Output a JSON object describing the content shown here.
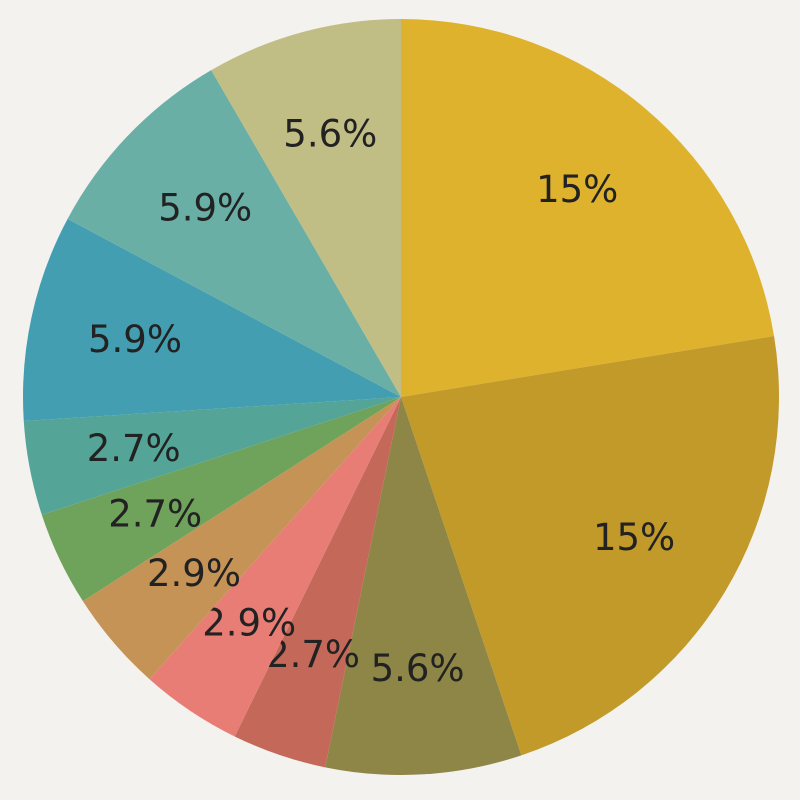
{
  "chart_data": {
    "type": "pie",
    "title": "",
    "start_angle": "12 o'clock",
    "direction": "clockwise",
    "legend": "none",
    "slices": [
      {
        "label": "15%",
        "value": 15.0,
        "color": "#dfb22e"
      },
      {
        "label": "15%",
        "value": 15.0,
        "color": "#c29a29"
      },
      {
        "label": "5.6%",
        "value": 5.6,
        "color": "#8e8646"
      },
      {
        "label": "2.7%",
        "value": 2.7,
        "color": "#c4695a"
      },
      {
        "label": "2.9%",
        "value": 2.9,
        "color": "#e87d75"
      },
      {
        "label": "2.9%",
        "value": 2.9,
        "color": "#c69357"
      },
      {
        "label": "2.7%",
        "value": 2.7,
        "color": "#6fa35c"
      },
      {
        "label": "2.7%",
        "value": 2.7,
        "color": "#54a597"
      },
      {
        "label": "5.9%",
        "value": 5.9,
        "color": "#429eb0"
      },
      {
        "label": "5.9%",
        "value": 5.9,
        "color": "#6aafa6"
      },
      {
        "label": "5.6%",
        "value": 5.6,
        "color": "#c0be85"
      }
    ],
    "label_color": "#222222"
  }
}
